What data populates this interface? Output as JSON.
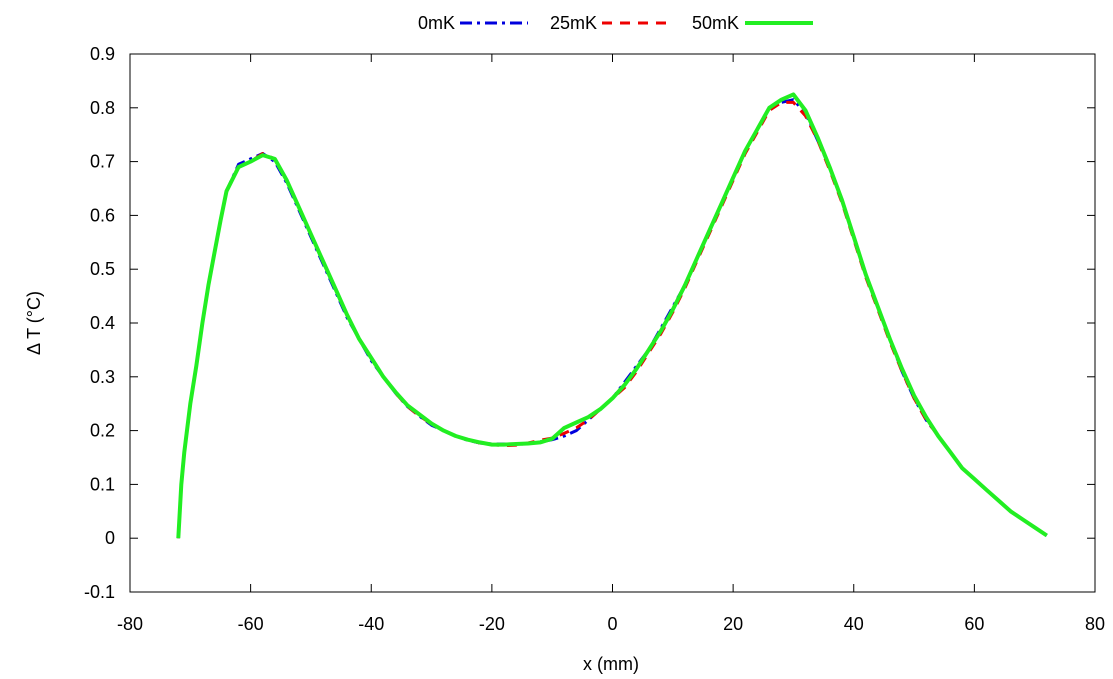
{
  "chart_data": {
    "type": "line",
    "title": "",
    "xlabel": "x (mm)",
    "ylabel": "Δ T (°C)",
    "xlim": [
      -80,
      80
    ],
    "ylim": [
      -0.1,
      0.9
    ],
    "xticks": [
      -80,
      -60,
      -40,
      -20,
      0,
      20,
      40,
      60,
      80
    ],
    "yticks": [
      -0.1,
      0,
      0.1,
      0.2,
      0.3,
      0.4,
      0.5,
      0.6,
      0.7,
      0.8,
      0.9
    ],
    "xtick_labels": [
      "-80",
      "-60",
      "-40",
      "-20",
      "0",
      "20",
      "40",
      "60",
      "80"
    ],
    "ytick_labels": [
      "-0.1",
      "0",
      "0.1",
      "0.2",
      "0.3",
      "0.4",
      "0.5",
      "0.6",
      "0.7",
      "0.8",
      "0.9"
    ],
    "grid": false,
    "legend_position": "top",
    "series": [
      {
        "name": "0mK",
        "color": "#0000dd",
        "style": "dash-dot",
        "x": [
          -72,
          -71.5,
          -71,
          -70,
          -69,
          -68,
          -67,
          -66,
          -65,
          -64,
          -62,
          -60,
          -58,
          -56,
          -54,
          -52,
          -50,
          -48,
          -46,
          -44,
          -42,
          -40,
          -38,
          -36,
          -34,
          -32,
          -30,
          -28,
          -26,
          -24,
          -22,
          -20,
          -18,
          -16,
          -14,
          -12,
          -10,
          -8,
          -6,
          -4,
          -2,
          0,
          2,
          4,
          6,
          8,
          10,
          12,
          14,
          16,
          18,
          20,
          22,
          24,
          26,
          28,
          30,
          32,
          34,
          36,
          38,
          40,
          42,
          44,
          46,
          48,
          50,
          52,
          54,
          56,
          58,
          60,
          62,
          64,
          66,
          68,
          70,
          72
        ],
        "y": [
          0.0,
          0.1,
          0.16,
          0.25,
          0.32,
          0.4,
          0.47,
          0.53,
          0.59,
          0.645,
          0.695,
          0.705,
          0.715,
          0.7,
          0.66,
          0.61,
          0.56,
          0.51,
          0.46,
          0.41,
          0.37,
          0.33,
          0.3,
          0.27,
          0.245,
          0.227,
          0.21,
          0.2,
          0.19,
          0.182,
          0.177,
          0.175,
          0.175,
          0.174,
          0.176,
          0.179,
          0.183,
          0.19,
          0.2,
          0.22,
          0.24,
          0.26,
          0.29,
          0.32,
          0.35,
          0.39,
          0.43,
          0.47,
          0.52,
          0.57,
          0.62,
          0.67,
          0.72,
          0.76,
          0.8,
          0.81,
          0.815,
          0.79,
          0.74,
          0.69,
          0.63,
          0.56,
          0.49,
          0.43,
          0.37,
          0.31,
          0.26,
          0.22,
          0.19,
          0.16,
          0.13,
          0.11,
          0.09,
          0.07,
          0.05,
          0.035,
          0.02,
          0.005
        ]
      },
      {
        "name": "25mK",
        "color": "#ee0000",
        "style": "dashed",
        "x": [
          -72,
          -71.5,
          -71,
          -70,
          -69,
          -68,
          -67,
          -66,
          -65,
          -64,
          -62,
          -60,
          -58,
          -56,
          -54,
          -52,
          -50,
          -48,
          -46,
          -44,
          -42,
          -40,
          -38,
          -36,
          -34,
          -32,
          -30,
          -28,
          -26,
          -24,
          -22,
          -20,
          -18,
          -16,
          -14,
          -12,
          -10,
          -8,
          -6,
          -4,
          -2,
          0,
          2,
          4,
          6,
          8,
          10,
          12,
          14,
          16,
          18,
          20,
          22,
          24,
          26,
          28,
          30,
          32,
          34,
          36,
          38,
          40,
          42,
          44,
          46,
          48,
          50,
          52,
          54,
          56,
          58,
          60,
          62,
          64,
          66,
          68,
          70,
          72
        ],
        "y": [
          0.0,
          0.1,
          0.16,
          0.25,
          0.32,
          0.4,
          0.47,
          0.53,
          0.59,
          0.645,
          0.69,
          0.7,
          0.715,
          0.705,
          0.665,
          0.615,
          0.565,
          0.515,
          0.465,
          0.415,
          0.37,
          0.335,
          0.3,
          0.27,
          0.245,
          0.227,
          0.212,
          0.2,
          0.19,
          0.183,
          0.177,
          0.174,
          0.172,
          0.173,
          0.177,
          0.182,
          0.186,
          0.195,
          0.205,
          0.22,
          0.24,
          0.26,
          0.28,
          0.31,
          0.345,
          0.38,
          0.42,
          0.465,
          0.515,
          0.565,
          0.615,
          0.665,
          0.715,
          0.755,
          0.795,
          0.81,
          0.81,
          0.785,
          0.74,
          0.685,
          0.625,
          0.555,
          0.485,
          0.425,
          0.365,
          0.31,
          0.26,
          0.22,
          0.19,
          0.16,
          0.13,
          0.11,
          0.09,
          0.07,
          0.05,
          0.035,
          0.02,
          0.005
        ]
      },
      {
        "name": "50mK",
        "color": "#22ee22",
        "style": "solid",
        "x": [
          -72,
          -71.5,
          -71,
          -70,
          -69,
          -68,
          -67,
          -66,
          -65,
          -64,
          -62,
          -60,
          -58,
          -56,
          -54,
          -52,
          -50,
          -48,
          -46,
          -44,
          -42,
          -40,
          -38,
          -36,
          -34,
          -32,
          -30,
          -28,
          -26,
          -24,
          -22,
          -20,
          -18,
          -16,
          -14,
          -12,
          -10,
          -8,
          -6,
          -4,
          -2,
          0,
          2,
          4,
          6,
          8,
          10,
          12,
          14,
          16,
          18,
          20,
          22,
          24,
          26,
          28,
          30,
          32,
          34,
          36,
          38,
          40,
          42,
          44,
          46,
          48,
          50,
          52,
          54,
          56,
          58,
          60,
          62,
          64,
          66,
          68,
          70,
          72
        ],
        "y": [
          0.0,
          0.1,
          0.16,
          0.25,
          0.32,
          0.4,
          0.47,
          0.53,
          0.59,
          0.645,
          0.69,
          0.7,
          0.712,
          0.705,
          0.665,
          0.615,
          0.565,
          0.515,
          0.465,
          0.415,
          0.37,
          0.335,
          0.3,
          0.272,
          0.247,
          0.23,
          0.213,
          0.2,
          0.19,
          0.183,
          0.178,
          0.174,
          0.174,
          0.175,
          0.176,
          0.178,
          0.185,
          0.205,
          0.215,
          0.225,
          0.24,
          0.26,
          0.285,
          0.315,
          0.35,
          0.385,
          0.425,
          0.47,
          0.52,
          0.57,
          0.62,
          0.67,
          0.72,
          0.76,
          0.8,
          0.815,
          0.825,
          0.795,
          0.745,
          0.69,
          0.63,
          0.56,
          0.49,
          0.43,
          0.37,
          0.315,
          0.265,
          0.225,
          0.19,
          0.16,
          0.13,
          0.11,
          0.09,
          0.07,
          0.05,
          0.035,
          0.02,
          0.005
        ]
      }
    ]
  }
}
